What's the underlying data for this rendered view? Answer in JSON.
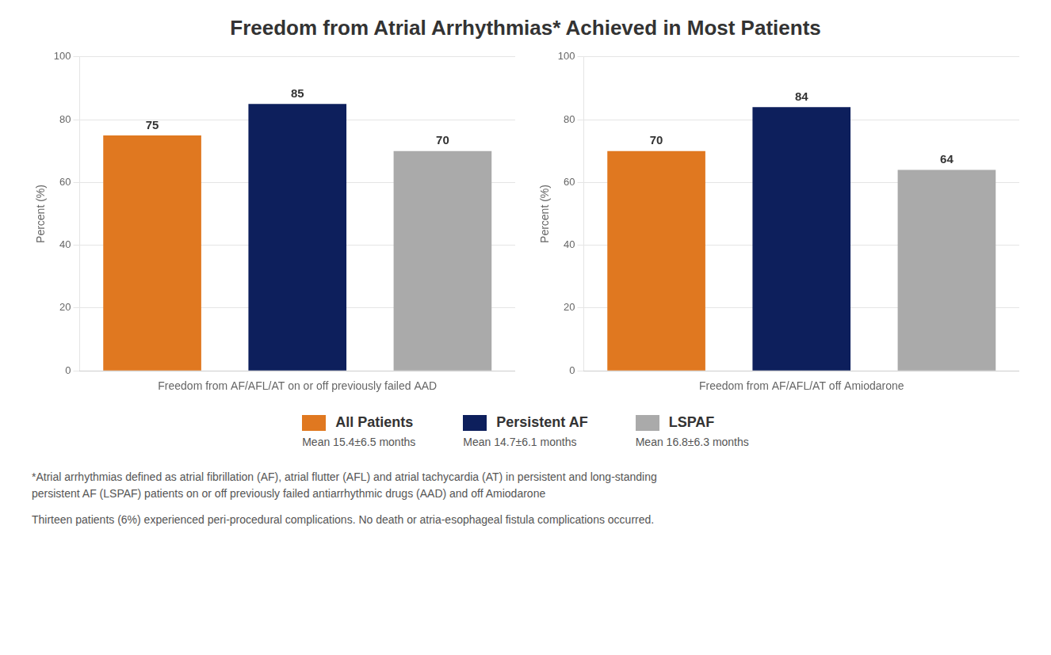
{
  "title": "Freedom from Atrial Arrhythmias* Achieved in Most Patients",
  "legend": "bottom",
  "chart_data": [
    {
      "type": "bar",
      "xlabel": "Freedom from AF/AFL/AT on or off previously failed AAD",
      "ylabel": "Percent (%)",
      "categories": [
        "All Patients",
        "Persistent AF",
        "LSPAF"
      ],
      "values": [
        75,
        85,
        70
      ],
      "colors": [
        "#E07820",
        "#0D1F5C",
        "#AAAAAA"
      ],
      "ylim": [
        0,
        100
      ],
      "yticks": [
        0,
        20,
        40,
        60,
        80,
        100
      ],
      "grid": true,
      "data_labels": true,
      "tick_labels": "y"
    },
    {
      "type": "bar",
      "xlabel": "Freedom from AF/AFL/AT off Amiodarone",
      "ylabel": "Percent (%)",
      "categories": [
        "All Patients",
        "Persistent AF",
        "LSPAF"
      ],
      "values": [
        70,
        84,
        64
      ],
      "colors": [
        "#E07820",
        "#0D1F5C",
        "#AAAAAA"
      ],
      "ylim": [
        0,
        100
      ],
      "yticks": [
        0,
        20,
        40,
        60,
        80,
        100
      ],
      "grid": true,
      "data_labels": true,
      "tick_labels": "y"
    }
  ],
  "annotations": [
    "Mean 15.4±6.5 months",
    "Mean 14.7±6.1 months",
    "Mean 16.8±6.3 months"
  ],
  "footnotes": [
    "*Atrial arrhythmias defined as atrial fibrillation (AF), atrial flutter (AFL) and atrial tachycardia (AT) in persistent and long-standing\npersistent AF (LSPAF) patients on or off previously failed antiarrhythmic drugs (AAD) and off Amiodarone",
    "Thirteen patients (6%) experienced peri-procedural complications. No death or atria-esophageal fistula complications occurred."
  ]
}
